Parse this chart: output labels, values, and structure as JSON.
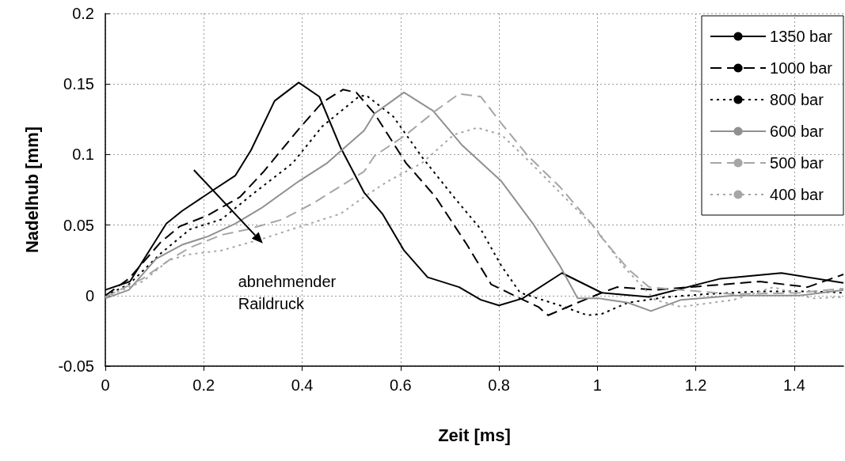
{
  "chart_data": {
    "type": "line",
    "xlabel": "Zeit [ms]",
    "ylabel": "Nadelhub [mm]",
    "xlim": [
      0,
      1.5
    ],
    "xticks": [
      0,
      0.2,
      0.4,
      0.6,
      0.8,
      1,
      1.2,
      1.4
    ],
    "ylim": [
      -0.05,
      0.2
    ],
    "yticks": [
      -0.05,
      0,
      0.05,
      0.1,
      0.15,
      0.2
    ],
    "grid": true,
    "legend": "top right",
    "marker": "none",
    "annotations": [
      {
        "text": "abnehmender Raildruck",
        "x": 0.32,
        "y": 0.037
      }
    ],
    "series": [
      {
        "name": "1350 bar",
        "color": "#000000",
        "line_style": "solid",
        "x": [
          0,
          0.05,
          0.124,
          0.156,
          0.216,
          0.264,
          0.296,
          0.344,
          0.393,
          0.435,
          0.478,
          0.526,
          0.563,
          0.607,
          0.655,
          0.719,
          0.763,
          0.8,
          0.848,
          0.928,
          1.009,
          1.105,
          1.25,
          1.374,
          1.5
        ],
        "values": [
          0.004,
          0.01,
          0.051,
          0.06,
          0.074,
          0.085,
          0.103,
          0.138,
          0.151,
          0.141,
          0.105,
          0.073,
          0.058,
          0.032,
          0.013,
          0.006,
          -0.003,
          -0.007,
          -0.002,
          0.016,
          0.002,
          -0.001,
          0.012,
          0.016,
          0.009
        ]
      },
      {
        "name": "1000 bar",
        "color": "#000000",
        "line_style": "dashed",
        "x": [
          0,
          0.048,
          0.113,
          0.151,
          0.209,
          0.274,
          0.322,
          0.393,
          0.441,
          0.483,
          0.51,
          0.547,
          0.611,
          0.671,
          0.735,
          0.784,
          0.843,
          0.88,
          0.9,
          0.96,
          1.009,
          1.04,
          1.117,
          1.33,
          1.427,
          1.5
        ],
        "values": [
          0,
          0.012,
          0.038,
          0.049,
          0.057,
          0.07,
          0.088,
          0.118,
          0.137,
          0.146,
          0.144,
          0.129,
          0.094,
          0.07,
          0.036,
          0.008,
          -0.002,
          -0.008,
          -0.014,
          -0.005,
          0.002,
          0.006,
          0.004,
          0.01,
          0.006,
          0.015
        ]
      },
      {
        "name": "800 bar",
        "color": "#000000",
        "line_style": "dotted",
        "x": [
          0,
          0.048,
          0.113,
          0.172,
          0.236,
          0.296,
          0.381,
          0.441,
          0.515,
          0.53,
          0.585,
          0.644,
          0.708,
          0.763,
          0.805,
          0.843,
          0.924,
          0.98,
          1.009,
          1.062,
          1.142,
          1.22,
          1.33,
          1.438,
          1.5
        ],
        "values": [
          0,
          0.008,
          0.03,
          0.047,
          0.054,
          0.071,
          0.094,
          0.12,
          0.141,
          0.142,
          0.127,
          0.098,
          0.07,
          0.047,
          0.021,
          0.002,
          -0.007,
          -0.014,
          -0.013,
          -0.005,
          -0.001,
          0.001,
          0.003,
          0.003,
          0.002
        ]
      },
      {
        "name": "600 bar",
        "color": "#909090",
        "line_style": "solid",
        "x": [
          0,
          0.048,
          0.103,
          0.156,
          0.209,
          0.264,
          0.317,
          0.393,
          0.451,
          0.526,
          0.547,
          0.607,
          0.666,
          0.724,
          0.805,
          0.869,
          0.924,
          0.96,
          1.004,
          1.062,
          1.109,
          1.17,
          1.277,
          1.41,
          1.5
        ],
        "values": [
          -0.002,
          0.004,
          0.026,
          0.036,
          0.042,
          0.051,
          0.062,
          0.081,
          0.094,
          0.117,
          0.129,
          0.144,
          0.131,
          0.107,
          0.081,
          0.051,
          0.021,
          -0.002,
          -0.002,
          -0.005,
          -0.011,
          -0.003,
          0,
          0,
          0.004
        ]
      },
      {
        "name": "500 bar",
        "color": "#a6a6a6",
        "line_style": "dashed",
        "x": [
          0,
          0.076,
          0.129,
          0.172,
          0.236,
          0.29,
          0.36,
          0.425,
          0.526,
          0.547,
          0.611,
          0.671,
          0.719,
          0.763,
          0.805,
          0.859,
          0.924,
          0.988,
          1.009,
          1.062,
          1.105,
          1.17,
          1.277,
          1.41,
          1.5
        ],
        "values": [
          -0.001,
          0.012,
          0.025,
          0.034,
          0.043,
          0.047,
          0.054,
          0.066,
          0.088,
          0.099,
          0.114,
          0.131,
          0.143,
          0.141,
          0.122,
          0.099,
          0.077,
          0.051,
          0.041,
          0.019,
          0.006,
          0.004,
          0.001,
          0.002,
          0.005
        ]
      },
      {
        "name": "400 bar",
        "color": "#a6a6a6",
        "line_style": "dotted",
        "x": [
          0,
          0.076,
          0.129,
          0.167,
          0.236,
          0.317,
          0.397,
          0.478,
          0.526,
          0.574,
          0.644,
          0.708,
          0.756,
          0.805,
          0.859,
          0.924,
          0.998,
          1.052,
          1.117,
          1.17,
          1.277,
          1.358,
          1.438,
          1.5
        ],
        "values": [
          -0.001,
          0.01,
          0.025,
          0.029,
          0.032,
          0.04,
          0.049,
          0.058,
          0.07,
          0.081,
          0.094,
          0.114,
          0.119,
          0.114,
          0.096,
          0.073,
          0.047,
          0.021,
          -0.003,
          -0.008,
          -0.003,
          0.006,
          -0.002,
          -0.001
        ]
      }
    ]
  }
}
